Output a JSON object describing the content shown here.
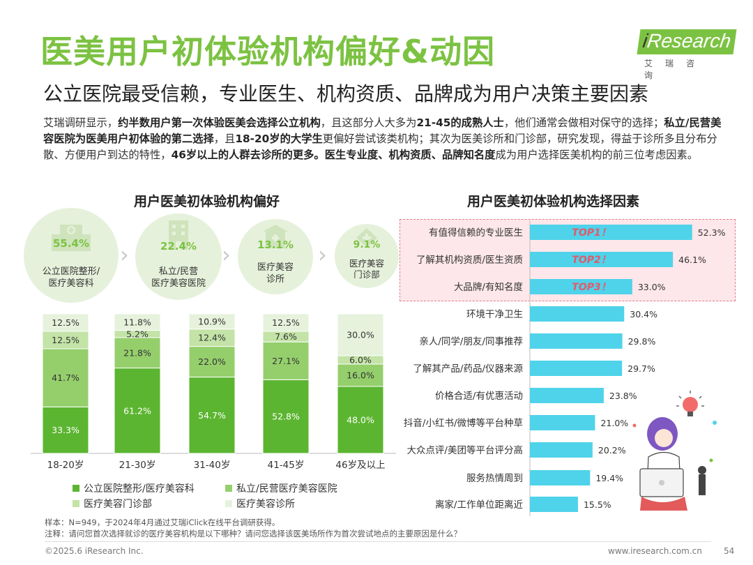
{
  "header": {
    "title": "医美用户初体验机构偏好&动因",
    "subtitle": "公立医院最受信赖，专业医生、机构资质、品牌成为用户决策主要因素",
    "logo_main": "Research",
    "logo_i": "i",
    "logo_cn": "艾瑞咨询"
  },
  "intro": {
    "p1": "艾瑞调研显示，",
    "p2": "约半数用户第一次体验医美会选择公立机构",
    "p3": "，且这部分人大多为",
    "p4": "21-45的成熟人士",
    "p5": "，他们通常会做相对保守的选择；",
    "p6": "私立/民营美容医院为医美用户初体验的第二选择",
    "p7": "，且",
    "p8": "18-20岁的大学生",
    "p9": "更偏好尝试该类机构；其次为医美诊所和门诊部，研究发现，得益于诊所多且分布分散、方便用户到达的特性，",
    "p10": "46岁以上的人群去诊所的更多。医生专业度、机构资质、品牌知名度",
    "p11": "成为用户选择医美机构的前三位考虑因素。"
  },
  "left_section": {
    "title": "用户医美初体验机构偏好",
    "circles": [
      {
        "pct": "55.4%",
        "label1": "公立医院整形/",
        "label2": "医疗美容科",
        "icon": "hospital-icon"
      },
      {
        "pct": "22.4%",
        "label1": "私立/民营",
        "label2": "医疗美容医院",
        "icon": "building-icon"
      },
      {
        "pct": "13.1%",
        "label1": "医疗美容",
        "label2": "诊所",
        "icon": "clinic-icon"
      },
      {
        "pct": "9.1%",
        "label1": "医疗美容",
        "label2": "门诊部",
        "icon": "outpatient-icon"
      }
    ],
    "legend": [
      {
        "label": "公立医院整形/医疗美容科",
        "color": "#5cb531"
      },
      {
        "label": "私立/民营医疗美容医院",
        "color": "#95cf6c"
      },
      {
        "label": "医疗美容门诊部",
        "color": "#c3e3a7"
      },
      {
        "label": "医疗美容诊所",
        "color": "#e6f2dc"
      }
    ]
  },
  "right_section": {
    "title": "用户医美初体验机构选择因素",
    "top_tags": [
      "TOP1！",
      "TOP2！",
      "TOP3！"
    ],
    "bar_color": "#4fd3ea"
  },
  "chart_data": [
    {
      "type": "bar",
      "stacked": true,
      "title": "用户医美初体验机构偏好",
      "categories": [
        "18-20岁",
        "21-30岁",
        "31-40岁",
        "41-45岁",
        "46岁及以上"
      ],
      "series": [
        {
          "name": "公立医院整形/医疗美容科",
          "values": [
            33.3,
            61.2,
            54.7,
            52.8,
            48.0
          ],
          "labels": [
            "33.3%",
            "61.2%",
            "54.7%",
            "52.8%",
            "48.0%"
          ],
          "color": "#5cb531"
        },
        {
          "name": "私立/民营医疗美容医院",
          "values": [
            41.7,
            21.8,
            22.0,
            27.1,
            16.0
          ],
          "labels": [
            "41.7%",
            "21.8%",
            "22.0%",
            "27.1%",
            "16.0%"
          ],
          "color": "#95cf6c"
        },
        {
          "name": "医疗美容门诊部",
          "values": [
            12.5,
            5.2,
            12.4,
            7.6,
            6.0
          ],
          "labels": [
            "12.5%",
            "5.2%",
            "12.4%",
            "7.6%",
            "6.0%"
          ],
          "color": "#c3e3a7"
        },
        {
          "name": "医疗美容诊所",
          "values": [
            12.5,
            11.8,
            10.9,
            12.5,
            30.0
          ],
          "labels": [
            "12.5%",
            "11.8%",
            "10.9%",
            "12.5%",
            "30.0%"
          ],
          "color": "#e6f2dc"
        }
      ],
      "ylim": [
        0,
        100
      ]
    },
    {
      "type": "bar",
      "orientation": "horizontal",
      "title": "用户医美初体验机构选择因素",
      "categories": [
        "有值得信赖的专业医生",
        "了解其机构资质/医生资质",
        "大品牌/有知名度",
        "环境干净卫生",
        "亲人/同学/朋友/同事推荐",
        "了解其产品/药品/仪器来源",
        "价格合适/有优惠活动",
        "抖音/小红书/微博等平台种草",
        "大众点评/美团等平台评分高",
        "服务热情周到",
        "离家/工作单位距离近"
      ],
      "values": [
        52.3,
        46.1,
        33.0,
        30.4,
        29.8,
        29.7,
        23.8,
        21.0,
        20.2,
        19.4,
        15.5
      ],
      "labels": [
        "52.3%",
        "46.1%",
        "33.0%",
        "30.4%",
        "29.8%",
        "29.7%",
        "23.8%",
        "21.0%",
        "20.2%",
        "19.4%",
        "15.5%"
      ],
      "xlim": [
        0,
        60
      ]
    }
  ],
  "notes": {
    "line1": "样本：N=949，于2024年4月通过艾瑞iClick在线平台调研获得。",
    "line2": "注释：请问您首次选择就诊的医疗美容机构是以下哪种？请问您选择该医美场所作为首次尝试地点的主要原因是什么？"
  },
  "footer": {
    "copyright": "©2025.6 iResearch Inc.",
    "website": "www.iresearch.com.cn",
    "page": "54"
  }
}
